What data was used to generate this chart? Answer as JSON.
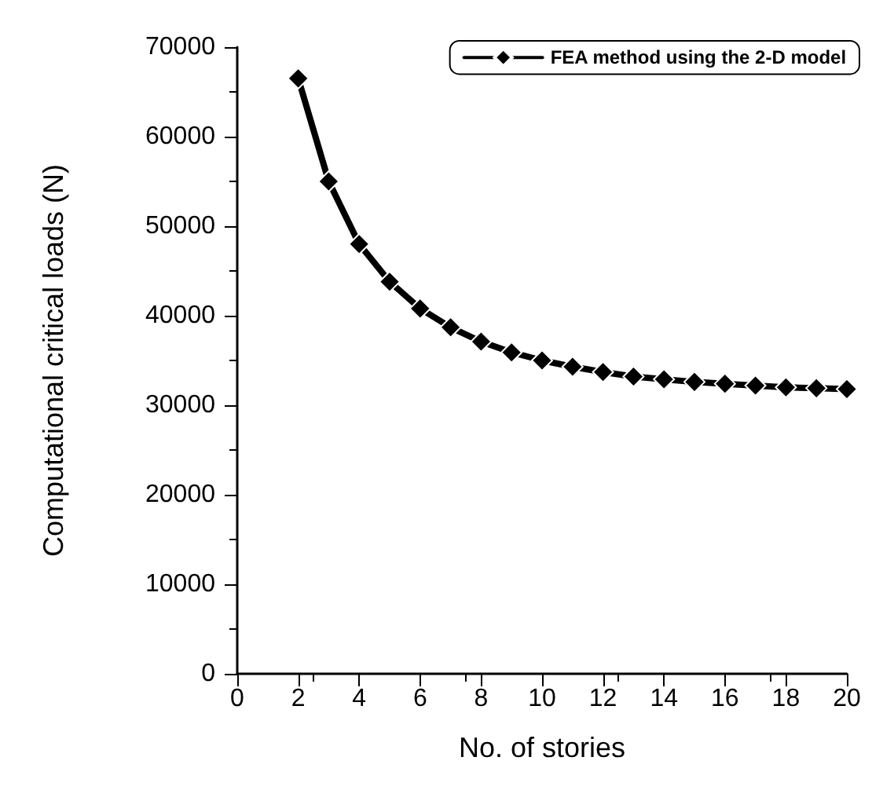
{
  "chart_data": {
    "type": "line",
    "xlabel": "No. of stories",
    "ylabel": "Computational critical loads (N)",
    "xlim": [
      0,
      20
    ],
    "xticks": [
      0,
      2,
      4,
      6,
      8,
      10,
      12,
      14,
      16,
      18,
      20
    ],
    "ylim": [
      0,
      70000
    ],
    "yticks": [
      0,
      10000,
      20000,
      30000,
      40000,
      50000,
      60000,
      70000
    ],
    "x": [
      2,
      3,
      4,
      5,
      6,
      7,
      8,
      9,
      10,
      11,
      12,
      13,
      14,
      15,
      16,
      17,
      18,
      19,
      20
    ],
    "series": [
      {
        "name": "FEA method using the 2-D model",
        "color": "#000000",
        "values": [
          66500,
          55000,
          48000,
          43800,
          40800,
          38700,
          37100,
          35900,
          35000,
          34300,
          33700,
          33200,
          32900,
          32600,
          32400,
          32200,
          32000,
          31900,
          31800
        ]
      }
    ],
    "marker": "diamond",
    "line_style": "solid",
    "grid": false,
    "legend": "top right"
  }
}
